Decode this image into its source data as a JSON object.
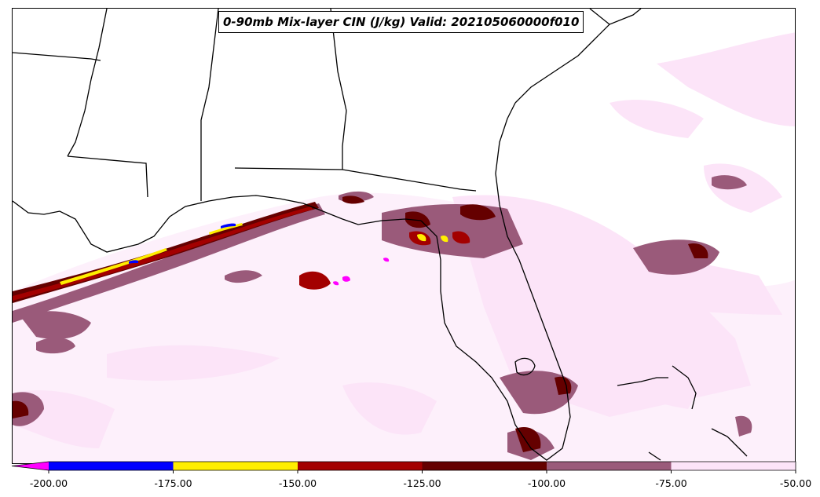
{
  "title": "0-90mb Mix-layer CIN (J/kg) Valid: 202105060000f010",
  "colorbar": {
    "extend": "min",
    "ticks": [
      "-200.00",
      "-175.00",
      "-150.00",
      "-125.00",
      "-100.00",
      "-75.00",
      "-50.00"
    ],
    "tick_values": [
      -200,
      -175,
      -150,
      -125,
      -100,
      -75,
      -50
    ],
    "bins": [
      {
        "from": -225,
        "to": -200,
        "color": "#ff00ff"
      },
      {
        "from": -200,
        "to": -175,
        "color": "#0000ff"
      },
      {
        "from": -175,
        "to": -150,
        "color": "#ffee00"
      },
      {
        "from": -150,
        "to": -125,
        "color": "#a30000"
      },
      {
        "from": -125,
        "to": -100,
        "color": "#650000"
      },
      {
        "from": -100,
        "to": -75,
        "color": "#9a5a7a"
      },
      {
        "from": -75,
        "to": -50,
        "color": "#fce4f8"
      }
    ]
  },
  "map": {
    "region": "Gulf of Mexico / Southeastern United States",
    "variable": "0-90mb Mix-layer CIN",
    "units": "J/kg"
  }
}
